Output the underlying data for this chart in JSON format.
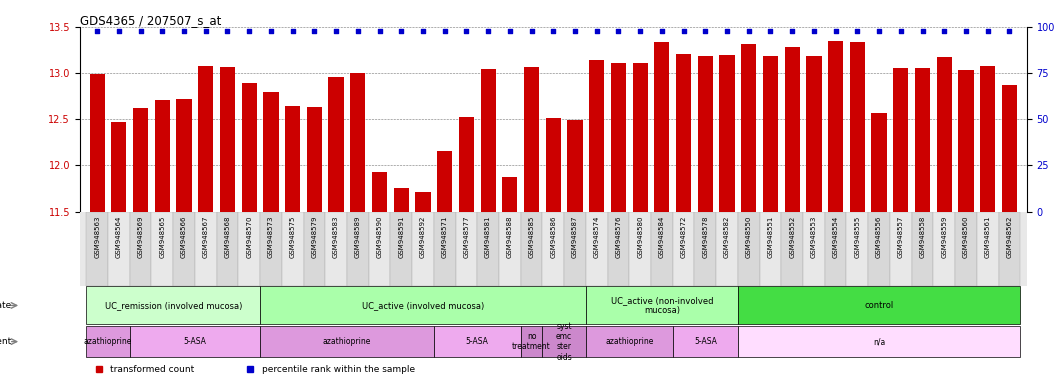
{
  "title": "GDS4365 / 207507_s_at",
  "samples": [
    "GSM948563",
    "GSM948564",
    "GSM948569",
    "GSM948565",
    "GSM948566",
    "GSM948567",
    "GSM948568",
    "GSM948570",
    "GSM948573",
    "GSM948575",
    "GSM948579",
    "GSM948583",
    "GSM948589",
    "GSM948590",
    "GSM948591",
    "GSM948592",
    "GSM948571",
    "GSM948577",
    "GSM948581",
    "GSM948588",
    "GSM948585",
    "GSM948586",
    "GSM948587",
    "GSM948574",
    "GSM948576",
    "GSM948580",
    "GSM948584",
    "GSM948572",
    "GSM948578",
    "GSM948582",
    "GSM948550",
    "GSM948551",
    "GSM948552",
    "GSM948553",
    "GSM948554",
    "GSM948555",
    "GSM948556",
    "GSM948557",
    "GSM948558",
    "GSM948559",
    "GSM948560",
    "GSM948561",
    "GSM948562"
  ],
  "values": [
    12.99,
    12.47,
    12.62,
    12.71,
    12.72,
    13.08,
    13.07,
    12.89,
    12.79,
    12.64,
    12.63,
    12.96,
    13.0,
    11.93,
    11.76,
    11.71,
    12.16,
    12.52,
    13.04,
    11.88,
    13.07,
    12.51,
    12.49,
    13.14,
    13.11,
    13.11,
    13.34,
    13.21,
    13.19,
    13.2,
    13.32,
    13.18,
    13.28,
    13.19,
    13.35,
    13.34,
    12.57,
    13.06,
    13.05,
    13.17,
    13.03,
    13.08,
    12.87
  ],
  "bar_color": "#cc0000",
  "percentile_color": "#0000cc",
  "ylim_left": [
    11.5,
    13.5
  ],
  "ylim_right": [
    0,
    100
  ],
  "yticks_left": [
    11.5,
    12.0,
    12.5,
    13.0,
    13.5
  ],
  "yticks_right": [
    0,
    25,
    50,
    75,
    100
  ],
  "disease_state_groups": [
    {
      "label": "UC_remission (involved mucosa)",
      "start": 0,
      "end": 8,
      "color": "#ccffcc"
    },
    {
      "label": "UC_active (involved mucosa)",
      "start": 8,
      "end": 23,
      "color": "#aaffaa"
    },
    {
      "label": "UC_active (non-involved\nmucosa)",
      "start": 23,
      "end": 30,
      "color": "#aaffaa"
    },
    {
      "label": "control",
      "start": 30,
      "end": 43,
      "color": "#44dd44"
    }
  ],
  "agent_groups": [
    {
      "label": "azathioprine",
      "start": 0,
      "end": 2,
      "color": "#dd99dd"
    },
    {
      "label": "5-ASA",
      "start": 2,
      "end": 8,
      "color": "#eeaaee"
    },
    {
      "label": "azathioprine",
      "start": 8,
      "end": 16,
      "color": "#dd99dd"
    },
    {
      "label": "5-ASA",
      "start": 16,
      "end": 20,
      "color": "#eeaaee"
    },
    {
      "label": "no\ntreatment",
      "start": 20,
      "end": 21,
      "color": "#cc88cc"
    },
    {
      "label": "syst\nemc\nster\noids",
      "start": 21,
      "end": 23,
      "color": "#cc88cc"
    },
    {
      "label": "azathioprine",
      "start": 23,
      "end": 27,
      "color": "#dd99dd"
    },
    {
      "label": "5-ASA",
      "start": 27,
      "end": 30,
      "color": "#eeaaee"
    },
    {
      "label": "n/a",
      "start": 30,
      "end": 43,
      "color": "#ffddff"
    }
  ],
  "legend_items": [
    {
      "label": "transformed count",
      "color": "#cc0000"
    },
    {
      "label": "percentile rank within the sample",
      "color": "#0000cc"
    }
  ],
  "bg_color": "#ffffff",
  "bar_width": 0.7,
  "tick_label_fontsize": 5.0
}
